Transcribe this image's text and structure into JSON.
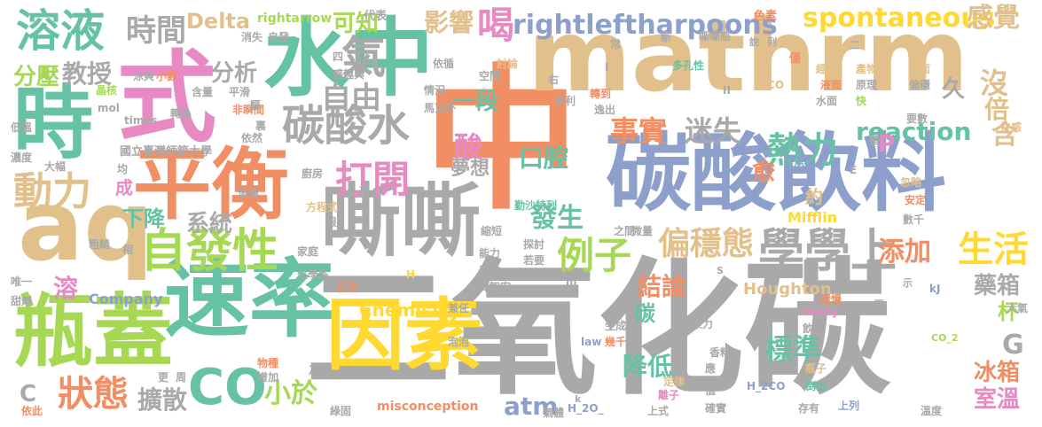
{
  "palette": [
    "#f28e64",
    "#a9a9a9",
    "#e2c08b",
    "#8da0cb",
    "#66c2a5",
    "#e78ac3",
    "#a6d854",
    "#ffd92f"
  ],
  "words": [
    {
      "text": "中",
      "color": "#f28e64"
    },
    {
      "text": "二氧化碳",
      "color": "#a9a9a9"
    },
    {
      "text": "mathrm",
      "color": "#e2c08b"
    },
    {
      "text": "碳酸飲料",
      "color": "#8da0cb"
    },
    {
      "text": "式",
      "color": "#e78ac3"
    },
    {
      "text": "水中",
      "color": "#66c2a5"
    },
    {
      "text": "平衡",
      "color": "#f28e64"
    },
    {
      "text": "因素",
      "color": "#ffd92f"
    },
    {
      "text": "速率",
      "color": "#66c2a5"
    },
    {
      "text": "瓶蓋",
      "color": "#a6d854"
    },
    {
      "text": "嘶嘶",
      "color": "#a9a9a9"
    },
    {
      "text": "aq",
      "color": "#e2c08b"
    },
    {
      "text": "時",
      "color": "#66c2a5"
    },
    {
      "text": "自發性",
      "color": "#a6d854"
    },
    {
      "text": "溶液",
      "color": "#66c2a5"
    },
    {
      "text": "時間",
      "color": "#a9a9a9"
    },
    {
      "text": "Delta",
      "color": "#e2c08b"
    },
    {
      "text": "rightarrow",
      "color": "#a6d854"
    },
    {
      "text": "可知",
      "color": "#a6d854"
    },
    {
      "text": "影響",
      "color": "#e2c08b"
    },
    {
      "text": "喝",
      "color": "#e78ac3"
    },
    {
      "text": "rightleftharpoons",
      "color": "#8da0cb"
    },
    {
      "text": "spontaneous",
      "color": "#ffd92f"
    },
    {
      "text": "感覺",
      "color": "#e2c08b"
    },
    {
      "text": "碳酸水",
      "color": "#a9a9a9"
    },
    {
      "text": "熱力",
      "color": "#66c2a5"
    },
    {
      "text": "reaction",
      "color": "#66c2a5"
    },
    {
      "text": "自由",
      "color": "#a9a9a9"
    },
    {
      "text": "打開",
      "color": "#e78ac3"
    },
    {
      "text": "事實",
      "color": "#f28e64"
    },
    {
      "text": "迷失",
      "color": "#a9a9a9"
    },
    {
      "text": "學學上",
      "color": "#a9a9a9"
    },
    {
      "text": "例子",
      "color": "#a6d854"
    },
    {
      "text": "偏穩態",
      "color": "#e2c08b"
    },
    {
      "text": "生活",
      "color": "#ffd92f"
    },
    {
      "text": "添加",
      "color": "#f28e64"
    },
    {
      "text": "動力",
      "color": "#e2c08b"
    },
    {
      "text": "分壓",
      "color": "#a6d854"
    },
    {
      "text": "教授",
      "color": "#a9a9a9"
    },
    {
      "text": "分析",
      "color": "#a9a9a9"
    },
    {
      "text": "系統",
      "color": "#a9a9a9"
    },
    {
      "text": "下降",
      "color": "#66c2a5"
    },
    {
      "text": "CO",
      "color": "#66c2a5"
    },
    {
      "text": "狀態",
      "color": "#f28e64"
    },
    {
      "text": "小於",
      "color": "#a6d854"
    },
    {
      "text": "擴散",
      "color": "#a9a9a9"
    },
    {
      "text": "atm",
      "color": "#8da0cb"
    },
    {
      "text": "結論",
      "color": "#f28e64"
    },
    {
      "text": "標準",
      "color": "#66c2a5"
    },
    {
      "text": "降低",
      "color": "#66c2a5"
    },
    {
      "text": "冰箱",
      "color": "#f28e64"
    },
    {
      "text": "室溫",
      "color": "#e78ac3"
    },
    {
      "text": "藥箱",
      "color": "#a9a9a9"
    },
    {
      "text": "發生",
      "color": "#66c2a5"
    },
    {
      "text": "口腔",
      "color": "#66c2a5"
    },
    {
      "text": "夢想",
      "color": "#a9a9a9"
    },
    {
      "text": "Houghton",
      "color": "#e2c08b"
    },
    {
      "text": "Chemistry",
      "color": "#ffd92f"
    },
    {
      "text": "Company",
      "color": "#8da0cb"
    },
    {
      "text": "Mifflin",
      "color": "#ffd92f"
    },
    {
      "text": "misconception",
      "color": "#f28e64"
    },
    {
      "text": "國立臺灣師範大學",
      "color": "#a9a9a9"
    },
    {
      "text": "一段",
      "color": "#66c2a5"
    },
    {
      "text": "氣",
      "color": "#a9a9a9"
    },
    {
      "text": "沒",
      "color": "#e2c08b"
    },
    {
      "text": "倍",
      "color": "#e2c08b"
    },
    {
      "text": "久",
      "color": "#a9a9a9"
    },
    {
      "text": "含",
      "color": "#e2c08b"
    },
    {
      "text": "愈",
      "color": "#f28e64"
    },
    {
      "text": "P",
      "color": "#e78ac3"
    },
    {
      "text": "G",
      "color": "#a9a9a9"
    },
    {
      "text": "C",
      "color": "#a9a9a9"
    },
    {
      "text": "溶",
      "color": "#e78ac3"
    },
    {
      "text": "成",
      "color": "#e78ac3"
    },
    {
      "text": "約",
      "color": "#e2c08b"
    },
    {
      "text": "杯",
      "color": "#a6d854"
    },
    {
      "text": "酸",
      "color": "#e78ac3"
    },
    {
      "text": "碳",
      "color": "#66c2a5"
    },
    {
      "text": "代表",
      "color": "#a9a9a9"
    },
    {
      "text": "色素",
      "color": "#f28e64"
    },
    {
      "text": "嘶嘶感",
      "color": "#a9a9a9"
    },
    {
      "text": "說",
      "color": "#a9a9a9"
    },
    {
      "text": "列",
      "color": "#a9a9a9"
    },
    {
      "text": "僅",
      "color": "#f28e64"
    },
    {
      "text": "經驗",
      "color": "#e2c08b"
    },
    {
      "text": "產物",
      "color": "#e2c08b"
    },
    {
      "text": "表面",
      "color": "#e2c08b"
    },
    {
      "text": "多孔性",
      "color": "#66c2a5"
    },
    {
      "text": "液面",
      "color": "#f28e64"
    },
    {
      "text": "原理",
      "color": "#a9a9a9"
    },
    {
      "text": "偏穩",
      "color": "#a9a9a9"
    },
    {
      "text": "HCO",
      "color": "#e2c08b"
    },
    {
      "text": "水面",
      "color": "#a9a9a9"
    },
    {
      "text": "快",
      "color": "#a6d854"
    },
    {
      "text": "快感",
      "color": "#e2c08b"
    },
    {
      "text": "要數",
      "color": "#a9a9a9"
    },
    {
      "text": "整",
      "color": "#a9a9a9"
    },
    {
      "text": "小小",
      "color": "#8da0cb"
    },
    {
      "text": "忽略",
      "color": "#e2c08b"
    },
    {
      "text": "安定",
      "color": "#f28e64"
    },
    {
      "text": "數千",
      "color": "#a9a9a9"
    },
    {
      "text": "kJ",
      "color": "#8da0cb"
    },
    {
      "text": "示",
      "color": "#a9a9a9"
    },
    {
      "text": "大氣",
      "color": "#a9a9a9"
    },
    {
      "text": "CO_2",
      "color": "#a6d854"
    },
    {
      "text": "瓶",
      "color": "#a9a9a9"
    },
    {
      "text": "溫度",
      "color": "#a9a9a9"
    },
    {
      "text": "上列",
      "color": "#8da0cb"
    },
    {
      "text": "存有",
      "color": "#a9a9a9"
    },
    {
      "text": "倒出",
      "color": "#66c2a5"
    },
    {
      "text": "瓶子",
      "color": "#e2c08b"
    },
    {
      "text": "H_2CO",
      "color": "#8da0cb"
    },
    {
      "text": "簡化",
      "color": "#a9a9a9"
    },
    {
      "text": "飲料",
      "color": "#a9a9a9"
    },
    {
      "text": "緩慢",
      "color": "#f28e64"
    },
    {
      "text": "Henry",
      "color": "#e78ac3"
    },
    {
      "text": "聚力",
      "color": "#a9a9a9"
    },
    {
      "text": "香料",
      "color": "#a9a9a9"
    },
    {
      "text": "應",
      "color": "#a9a9a9"
    },
    {
      "text": "值",
      "color": "#a9a9a9"
    },
    {
      "text": "確實",
      "color": "#a9a9a9"
    },
    {
      "text": "離子",
      "color": "#e78ac3"
    },
    {
      "text": "上式",
      "color": "#a9a9a9"
    },
    {
      "text": "攪",
      "color": "#a9a9a9"
    },
    {
      "text": "定律",
      "color": "#e2c08b"
    },
    {
      "text": "H_2O_",
      "color": "#8da0cb"
    },
    {
      "text": "k",
      "color": "#a9a9a9"
    },
    {
      "text": "氣體",
      "color": "#a9a9a9"
    },
    {
      "text": "law",
      "color": "#8da0cb"
    },
    {
      "text": "幾千",
      "color": "#f28e64"
    },
    {
      "text": "生成變",
      "color": "#a9a9a9"
    },
    {
      "text": "兼任",
      "color": "#a9a9a9"
    },
    {
      "text": "泡泡",
      "color": "#a9a9a9"
    },
    {
      "text": "邱智宏",
      "color": "#a9a9a9"
    },
    {
      "text": "若要",
      "color": "#a9a9a9"
    },
    {
      "text": "連結",
      "color": "#a9a9a9"
    },
    {
      "text": "探討",
      "color": "#a9a9a9"
    },
    {
      "text": "能力",
      "color": "#a9a9a9"
    },
    {
      "text": "縮短",
      "color": "#a9a9a9"
    },
    {
      "text": "之間",
      "color": "#a9a9a9"
    },
    {
      "text": "微量",
      "color": "#a9a9a9"
    },
    {
      "text": "勤沙特列",
      "color": "#66c2a5"
    },
    {
      "text": "高",
      "color": "#a9a9a9"
    },
    {
      "text": "方程式",
      "color": "#e2c08b"
    },
    {
      "text": "根",
      "color": "#a9a9a9"
    },
    {
      "text": "家庭",
      "color": "#a9a9a9"
    },
    {
      "text": "化學系",
      "color": "#a9a9a9"
    },
    {
      "text": "正比",
      "color": "#f28e64"
    },
    {
      "text": "H",
      "color": "#ffd92f"
    },
    {
      "text": "物種",
      "color": "#f28e64"
    },
    {
      "text": "增加",
      "color": "#a9a9a9"
    },
    {
      "text": "乃吾",
      "color": "#a9a9a9"
    },
    {
      "text": "綠固",
      "color": "#a9a9a9"
    },
    {
      "text": "廚房",
      "color": "#a9a9a9"
    },
    {
      "text": "玻璃",
      "color": "#a9a9a9"
    },
    {
      "text": "大幅",
      "color": "#a9a9a9"
    },
    {
      "text": "均",
      "color": "#a9a9a9"
    },
    {
      "text": "依然",
      "color": "#a9a9a9"
    },
    {
      "text": "裏",
      "color": "#a9a9a9"
    },
    {
      "text": "非瞬間",
      "color": "#f28e64"
    },
    {
      "text": "轉為",
      "color": "#a9a9a9"
    },
    {
      "text": "times",
      "color": "#a9a9a9"
    },
    {
      "text": "mol",
      "color": "#a9a9a9"
    },
    {
      "text": "低溫",
      "color": "#a9a9a9"
    },
    {
      "text": "濃度",
      "color": "#a9a9a9"
    },
    {
      "text": "粗糙",
      "color": "#a9a9a9"
    },
    {
      "text": "唯一",
      "color": "#a9a9a9"
    },
    {
      "text": "甜劑",
      "color": "#a9a9a9"
    },
    {
      "text": "依此",
      "color": "#f28e64"
    },
    {
      "text": "更",
      "color": "#a9a9a9"
    },
    {
      "text": "周",
      "color": "#a9a9a9"
    },
    {
      "text": "相",
      "color": "#a9a9a9"
    },
    {
      "text": "涼爽",
      "color": "#a9a9a9"
    },
    {
      "text": "小數",
      "color": "#f28e64"
    },
    {
      "text": "含量",
      "color": "#a9a9a9"
    },
    {
      "text": "晶核",
      "color": "#a6d854"
    },
    {
      "text": "四",
      "color": "#a9a9a9"
    },
    {
      "text": "感趣興",
      "color": "#a9a9a9"
    },
    {
      "text": "平滑",
      "color": "#a9a9a9"
    },
    {
      "text": "馬克杯",
      "color": "#a9a9a9"
    },
    {
      "text": "情況",
      "color": "#a9a9a9"
    },
    {
      "text": "空間",
      "color": "#a9a9a9"
    },
    {
      "text": "依循",
      "color": "#a9a9a9"
    },
    {
      "text": "討論",
      "color": "#e2c08b"
    },
    {
      "text": "右",
      "color": "#a9a9a9"
    },
    {
      "text": "亨利",
      "color": "#a9a9a9"
    },
    {
      "text": "轉到",
      "color": "#f28e64"
    },
    {
      "text": "逸出",
      "color": "#a9a9a9"
    },
    {
      "text": "常",
      "color": "#a9a9a9"
    },
    {
      "text": "新",
      "color": "#a9a9a9"
    },
    {
      "text": "消失",
      "color": "#a9a9a9"
    },
    {
      "text": "自發",
      "color": "#a9a9a9"
    },
    {
      "text": "驅",
      "color": "#a9a9a9"
    },
    {
      "text": "II",
      "color": "#a9a9a9"
    },
    {
      "text": "二",
      "color": "#a9a9a9"
    },
    {
      "text": "I",
      "color": "#a9a9a9"
    },
    {
      "text": "S",
      "color": "#a9a9a9"
    },
    {
      "text": "E",
      "color": "#a9a9a9"
    },
    {
      "text": "m",
      "color": "#a9a9a9"
    }
  ]
}
